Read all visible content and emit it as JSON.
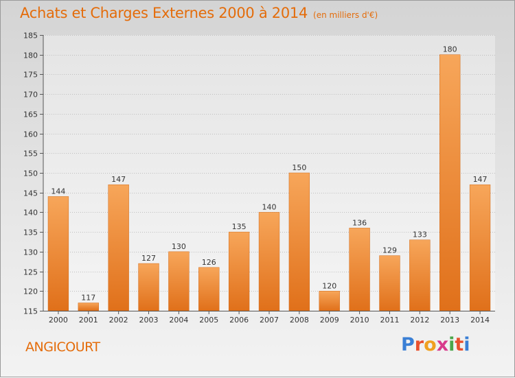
{
  "header": {
    "title": "Achats et Charges Externes 2000 à 2014",
    "subtitle": "(en milliers d'€)"
  },
  "footer": {
    "commune": "ANGICOURT",
    "logo_letters": [
      "P",
      "r",
      "o",
      "x",
      "i",
      "t",
      "i"
    ],
    "logo_colors": [
      "#3a7fd5",
      "#e8502e",
      "#f0a020",
      "#d83a8c",
      "#4aa64a",
      "#e8502e",
      "#3a7fd5"
    ]
  },
  "colors": {
    "title": "#e46c0a",
    "bar_light": "#f7a65a",
    "bar_dark": "#e0701a",
    "grid": "#bfbfbf"
  },
  "chart_data": {
    "type": "bar",
    "categories": [
      "2000",
      "2001",
      "2002",
      "2003",
      "2004",
      "2005",
      "2006",
      "2007",
      "2008",
      "2009",
      "2010",
      "2011",
      "2012",
      "2013",
      "2014"
    ],
    "values": [
      144,
      117,
      147,
      127,
      130,
      126,
      135,
      140,
      150,
      120,
      136,
      129,
      133,
      180,
      147
    ],
    "data_labels": [
      "144",
      "117",
      "147",
      "127",
      "130",
      "126",
      "135",
      "140",
      "150",
      "120",
      "136",
      "129",
      "133",
      "180",
      "147"
    ],
    "yticks": [
      115,
      120,
      125,
      130,
      135,
      140,
      145,
      150,
      155,
      160,
      165,
      170,
      175,
      180,
      185
    ],
    "ylim": [
      115,
      185
    ],
    "grid": true,
    "xlabel": "",
    "ylabel": ""
  }
}
